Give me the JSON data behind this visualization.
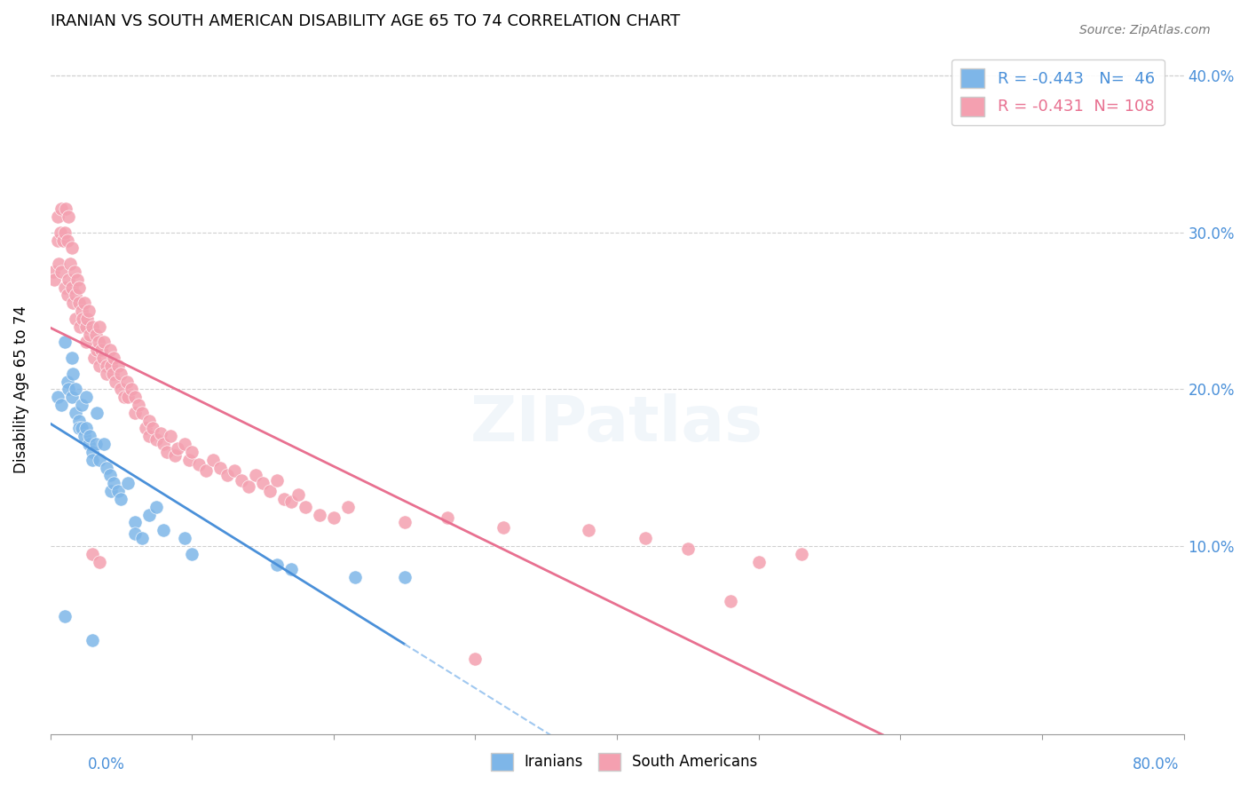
{
  "title": "IRANIAN VS SOUTH AMERICAN DISABILITY AGE 65 TO 74 CORRELATION CHART",
  "source": "Source: ZipAtlas.com",
  "ylabel": "Disability Age 65 to 74",
  "ytick_labels": [
    "10.0%",
    "20.0%",
    "30.0%",
    "40.0%"
  ],
  "xlim": [
    0.0,
    0.8
  ],
  "ylim": [
    -0.02,
    0.42
  ],
  "iranian_R": -0.443,
  "iranian_N": 46,
  "southamerican_R": -0.431,
  "southamerican_N": 108,
  "iranian_color": "#7EB6E8",
  "southamerican_color": "#F4A0B0",
  "trendline_iranian_color": "#4A90D9",
  "trendline_southamerican_color": "#E87090",
  "trendline_extension_color": "#A0C8F0",
  "watermark": "ZIPatlas",
  "iranians_scatter": [
    [
      0.005,
      0.195
    ],
    [
      0.008,
      0.19
    ],
    [
      0.01,
      0.23
    ],
    [
      0.012,
      0.205
    ],
    [
      0.013,
      0.2
    ],
    [
      0.015,
      0.22
    ],
    [
      0.015,
      0.195
    ],
    [
      0.016,
      0.21
    ],
    [
      0.018,
      0.185
    ],
    [
      0.018,
      0.2
    ],
    [
      0.02,
      0.18
    ],
    [
      0.02,
      0.175
    ],
    [
      0.022,
      0.19
    ],
    [
      0.022,
      0.175
    ],
    [
      0.024,
      0.17
    ],
    [
      0.025,
      0.195
    ],
    [
      0.025,
      0.175
    ],
    [
      0.027,
      0.165
    ],
    [
      0.028,
      0.17
    ],
    [
      0.03,
      0.16
    ],
    [
      0.03,
      0.155
    ],
    [
      0.032,
      0.165
    ],
    [
      0.033,
      0.185
    ],
    [
      0.035,
      0.155
    ],
    [
      0.038,
      0.165
    ],
    [
      0.04,
      0.15
    ],
    [
      0.042,
      0.145
    ],
    [
      0.043,
      0.135
    ],
    [
      0.045,
      0.14
    ],
    [
      0.048,
      0.135
    ],
    [
      0.05,
      0.13
    ],
    [
      0.055,
      0.14
    ],
    [
      0.06,
      0.115
    ],
    [
      0.06,
      0.108
    ],
    [
      0.065,
      0.105
    ],
    [
      0.07,
      0.12
    ],
    [
      0.075,
      0.125
    ],
    [
      0.08,
      0.11
    ],
    [
      0.095,
      0.105
    ],
    [
      0.1,
      0.095
    ],
    [
      0.16,
      0.088
    ],
    [
      0.17,
      0.085
    ],
    [
      0.215,
      0.08
    ],
    [
      0.25,
      0.08
    ],
    [
      0.01,
      0.055
    ],
    [
      0.03,
      0.04
    ]
  ],
  "southamericans_scatter": [
    [
      0.002,
      0.275
    ],
    [
      0.003,
      0.27
    ],
    [
      0.005,
      0.295
    ],
    [
      0.005,
      0.31
    ],
    [
      0.006,
      0.28
    ],
    [
      0.007,
      0.3
    ],
    [
      0.008,
      0.315
    ],
    [
      0.008,
      0.275
    ],
    [
      0.009,
      0.295
    ],
    [
      0.01,
      0.3
    ],
    [
      0.01,
      0.265
    ],
    [
      0.011,
      0.315
    ],
    [
      0.012,
      0.26
    ],
    [
      0.012,
      0.295
    ],
    [
      0.013,
      0.31
    ],
    [
      0.013,
      0.27
    ],
    [
      0.014,
      0.28
    ],
    [
      0.015,
      0.265
    ],
    [
      0.015,
      0.29
    ],
    [
      0.016,
      0.255
    ],
    [
      0.017,
      0.275
    ],
    [
      0.018,
      0.26
    ],
    [
      0.018,
      0.245
    ],
    [
      0.019,
      0.27
    ],
    [
      0.02,
      0.255
    ],
    [
      0.02,
      0.265
    ],
    [
      0.021,
      0.24
    ],
    [
      0.022,
      0.25
    ],
    [
      0.023,
      0.245
    ],
    [
      0.024,
      0.255
    ],
    [
      0.025,
      0.24
    ],
    [
      0.025,
      0.23
    ],
    [
      0.026,
      0.245
    ],
    [
      0.027,
      0.25
    ],
    [
      0.028,
      0.235
    ],
    [
      0.03,
      0.24
    ],
    [
      0.031,
      0.22
    ],
    [
      0.032,
      0.235
    ],
    [
      0.033,
      0.225
    ],
    [
      0.034,
      0.23
    ],
    [
      0.035,
      0.24
    ],
    [
      0.035,
      0.215
    ],
    [
      0.036,
      0.225
    ],
    [
      0.037,
      0.22
    ],
    [
      0.038,
      0.23
    ],
    [
      0.04,
      0.215
    ],
    [
      0.04,
      0.21
    ],
    [
      0.042,
      0.225
    ],
    [
      0.043,
      0.215
    ],
    [
      0.044,
      0.21
    ],
    [
      0.045,
      0.22
    ],
    [
      0.046,
      0.205
    ],
    [
      0.048,
      0.215
    ],
    [
      0.05,
      0.2
    ],
    [
      0.05,
      0.21
    ],
    [
      0.052,
      0.195
    ],
    [
      0.054,
      0.205
    ],
    [
      0.055,
      0.195
    ],
    [
      0.057,
      0.2
    ],
    [
      0.06,
      0.185
    ],
    [
      0.06,
      0.195
    ],
    [
      0.062,
      0.19
    ],
    [
      0.065,
      0.185
    ],
    [
      0.067,
      0.175
    ],
    [
      0.07,
      0.18
    ],
    [
      0.07,
      0.17
    ],
    [
      0.072,
      0.175
    ],
    [
      0.075,
      0.168
    ],
    [
      0.078,
      0.172
    ],
    [
      0.08,
      0.165
    ],
    [
      0.082,
      0.16
    ],
    [
      0.085,
      0.17
    ],
    [
      0.088,
      0.158
    ],
    [
      0.09,
      0.162
    ],
    [
      0.095,
      0.165
    ],
    [
      0.098,
      0.155
    ],
    [
      0.1,
      0.16
    ],
    [
      0.105,
      0.152
    ],
    [
      0.11,
      0.148
    ],
    [
      0.115,
      0.155
    ],
    [
      0.12,
      0.15
    ],
    [
      0.125,
      0.145
    ],
    [
      0.13,
      0.148
    ],
    [
      0.135,
      0.142
    ],
    [
      0.14,
      0.138
    ],
    [
      0.145,
      0.145
    ],
    [
      0.15,
      0.14
    ],
    [
      0.155,
      0.135
    ],
    [
      0.16,
      0.142
    ],
    [
      0.165,
      0.13
    ],
    [
      0.17,
      0.128
    ],
    [
      0.175,
      0.133
    ],
    [
      0.18,
      0.125
    ],
    [
      0.19,
      0.12
    ],
    [
      0.2,
      0.118
    ],
    [
      0.21,
      0.125
    ],
    [
      0.25,
      0.115
    ],
    [
      0.28,
      0.118
    ],
    [
      0.32,
      0.112
    ],
    [
      0.38,
      0.11
    ],
    [
      0.42,
      0.105
    ],
    [
      0.45,
      0.098
    ],
    [
      0.5,
      0.09
    ],
    [
      0.53,
      0.095
    ],
    [
      0.03,
      0.095
    ],
    [
      0.035,
      0.09
    ],
    [
      0.48,
      0.065
    ],
    [
      0.3,
      0.028
    ]
  ]
}
